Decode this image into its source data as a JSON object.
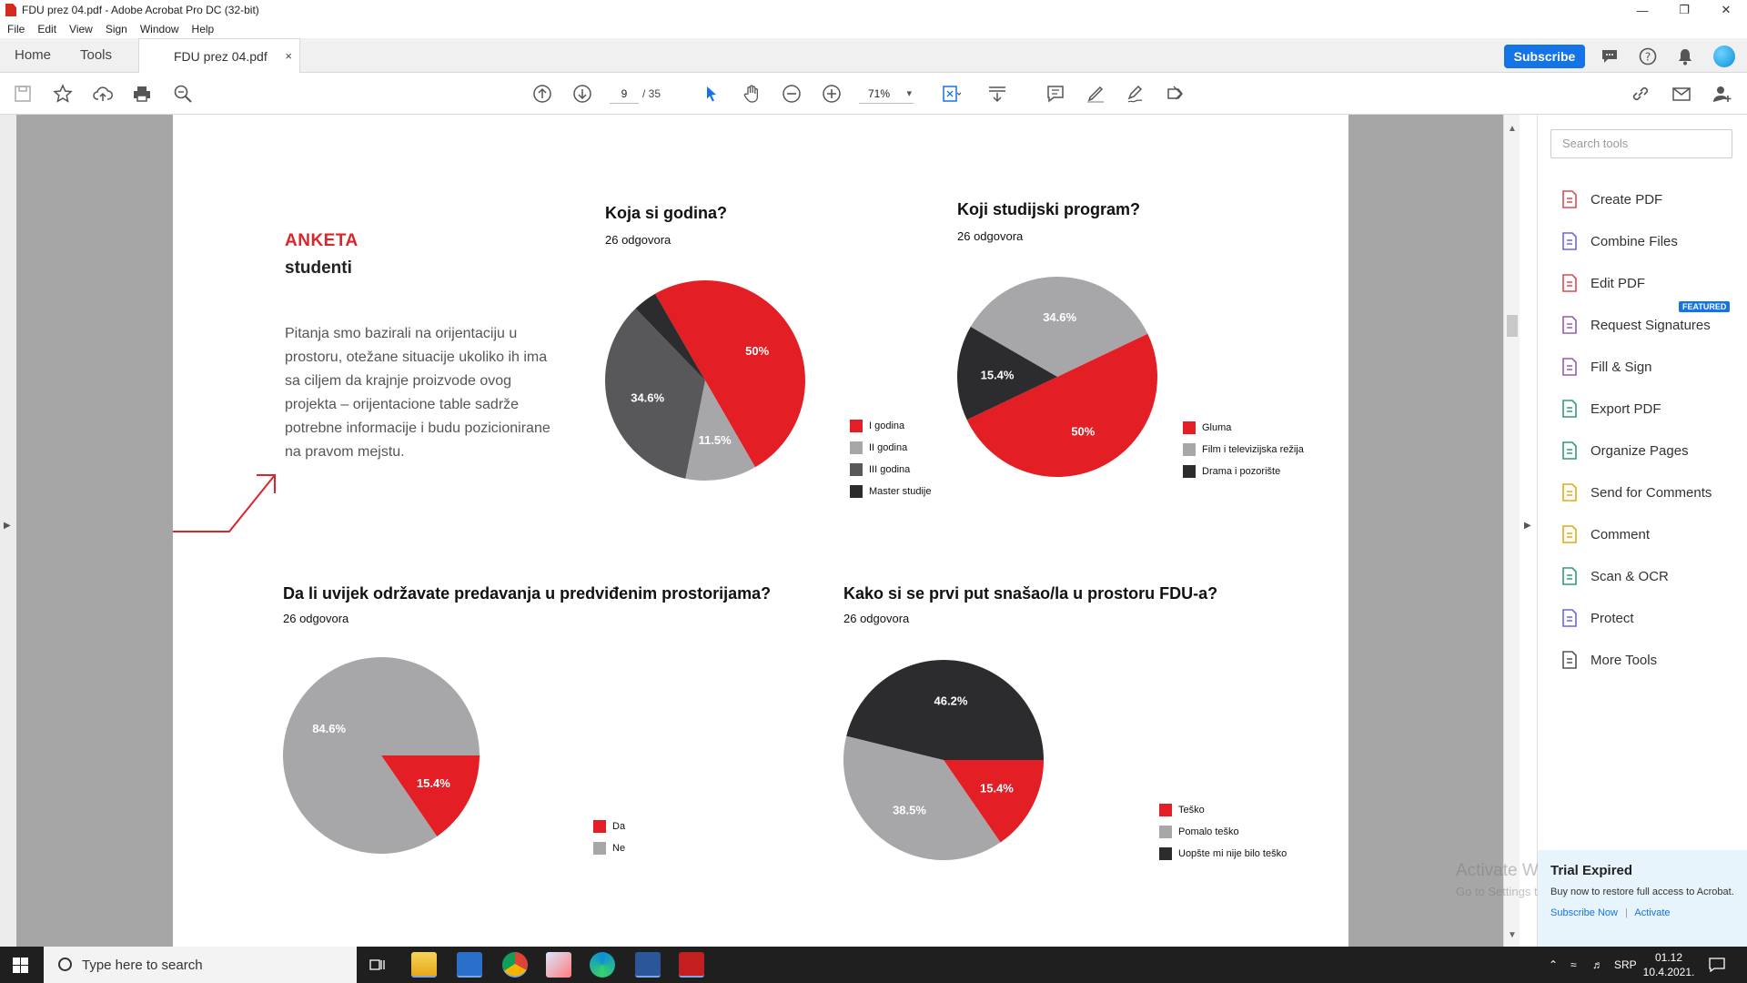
{
  "window": {
    "title": "FDU prez 04.pdf - Adobe Acrobat Pro DC (32-bit)"
  },
  "menu": [
    "File",
    "Edit",
    "View",
    "Sign",
    "Window",
    "Help"
  ],
  "tabs": {
    "home": "Home",
    "tools": "Tools",
    "doc": "FDU prez 04.pdf",
    "close": "×"
  },
  "header": {
    "subscribe": "Subscribe"
  },
  "toolbar": {
    "page_current": "9",
    "page_total": "/ 35",
    "zoom": "71%"
  },
  "document": {
    "heading_red": "ANKETA",
    "heading_black": "studenti",
    "intro": "Pitanja smo bazirali na orijentaciju u prostoru, otežane situacije ukoliko ih ima sa ciljem da krajnje proizvode ovog projekta – orijentacione table sadrže potrebne informacije i budu pozicionirane na pravom mejstu."
  },
  "chart_data": [
    {
      "type": "pie",
      "title": "Koja si godina?",
      "subtitle": "26 odgovora",
      "categories": [
        "I godina",
        "II godina",
        "III godina",
        "Master studije"
      ],
      "values": [
        50,
        11.5,
        34.6,
        3.9
      ],
      "labels": [
        "50%",
        "11.5%",
        "34.6%",
        ""
      ],
      "colors": [
        "#e31e24",
        "#a7a7aa",
        "#58585b",
        "#2c2c2e"
      ],
      "start_angle": -120
    },
    {
      "type": "pie",
      "title": "Koji studijski program?",
      "subtitle": "26 odgovora",
      "categories": [
        "Gluma",
        "Film i televizijska režija",
        "Drama i pozorište"
      ],
      "values": [
        50,
        34.6,
        15.4
      ],
      "labels": [
        "50%",
        "34.6%",
        "15.4%"
      ],
      "colors": [
        "#e31e24",
        "#a7a7aa",
        "#2c2c2e"
      ],
      "order": [
        1,
        0,
        2
      ],
      "start_angle": -150
    },
    {
      "type": "pie",
      "title": "Da li uvijek održavate predavanja u predviđenim prostorijama?",
      "subtitle": "26 odgovora",
      "categories": [
        "Da",
        "Ne"
      ],
      "values": [
        15.4,
        84.6
      ],
      "labels": [
        "15.4%",
        "84.6%"
      ],
      "colors": [
        "#e31e24",
        "#a7a7aa"
      ],
      "start_angle": 0
    },
    {
      "type": "pie",
      "title": "Kako si se prvi put snašao/la u prostoru FDU-a?",
      "subtitle": "26 odgovora",
      "categories": [
        "Teško",
        "Pomalo teško",
        "Uopšte mi nije bilo teško"
      ],
      "values": [
        15.4,
        38.5,
        46.2
      ],
      "labels": [
        "15.4%",
        "38.5%",
        "46.2%"
      ],
      "colors": [
        "#e31e24",
        "#a7a7aa",
        "#2c2c2e"
      ],
      "start_angle": 0
    }
  ],
  "tools_pane": {
    "search_placeholder": "Search tools",
    "featured": "FEATURED",
    "items": [
      {
        "label": "Create PDF",
        "color": "#e34850"
      },
      {
        "label": "Combine Files",
        "color": "#6767ec"
      },
      {
        "label": "Edit PDF",
        "color": "#e34850"
      },
      {
        "label": "Request Signatures",
        "color": "#9b59b6"
      },
      {
        "label": "Fill & Sign",
        "color": "#9b59b6"
      },
      {
        "label": "Export PDF",
        "color": "#2d9d78"
      },
      {
        "label": "Organize Pages",
        "color": "#2d9d78"
      },
      {
        "label": "Send for Comments",
        "color": "#e8a90c"
      },
      {
        "label": "Comment",
        "color": "#e8a90c"
      },
      {
        "label": "Scan & OCR",
        "color": "#2d9d78"
      },
      {
        "label": "Protect",
        "color": "#6767ec"
      },
      {
        "label": "More Tools",
        "color": "#555555"
      }
    ]
  },
  "trial": {
    "title": "Trial Expired",
    "text": "Buy now to restore full access to Acrobat.",
    "subscribe_now": "Subscribe Now",
    "separator": "|",
    "activate": "Activate"
  },
  "watermark": {
    "line1": "Activate Windows",
    "line2": "Go to Settings to activate Windows."
  },
  "taskbar": {
    "search": "Type here to search",
    "lang": "SRP",
    "time": "01.12",
    "date": "10.4.2021."
  }
}
